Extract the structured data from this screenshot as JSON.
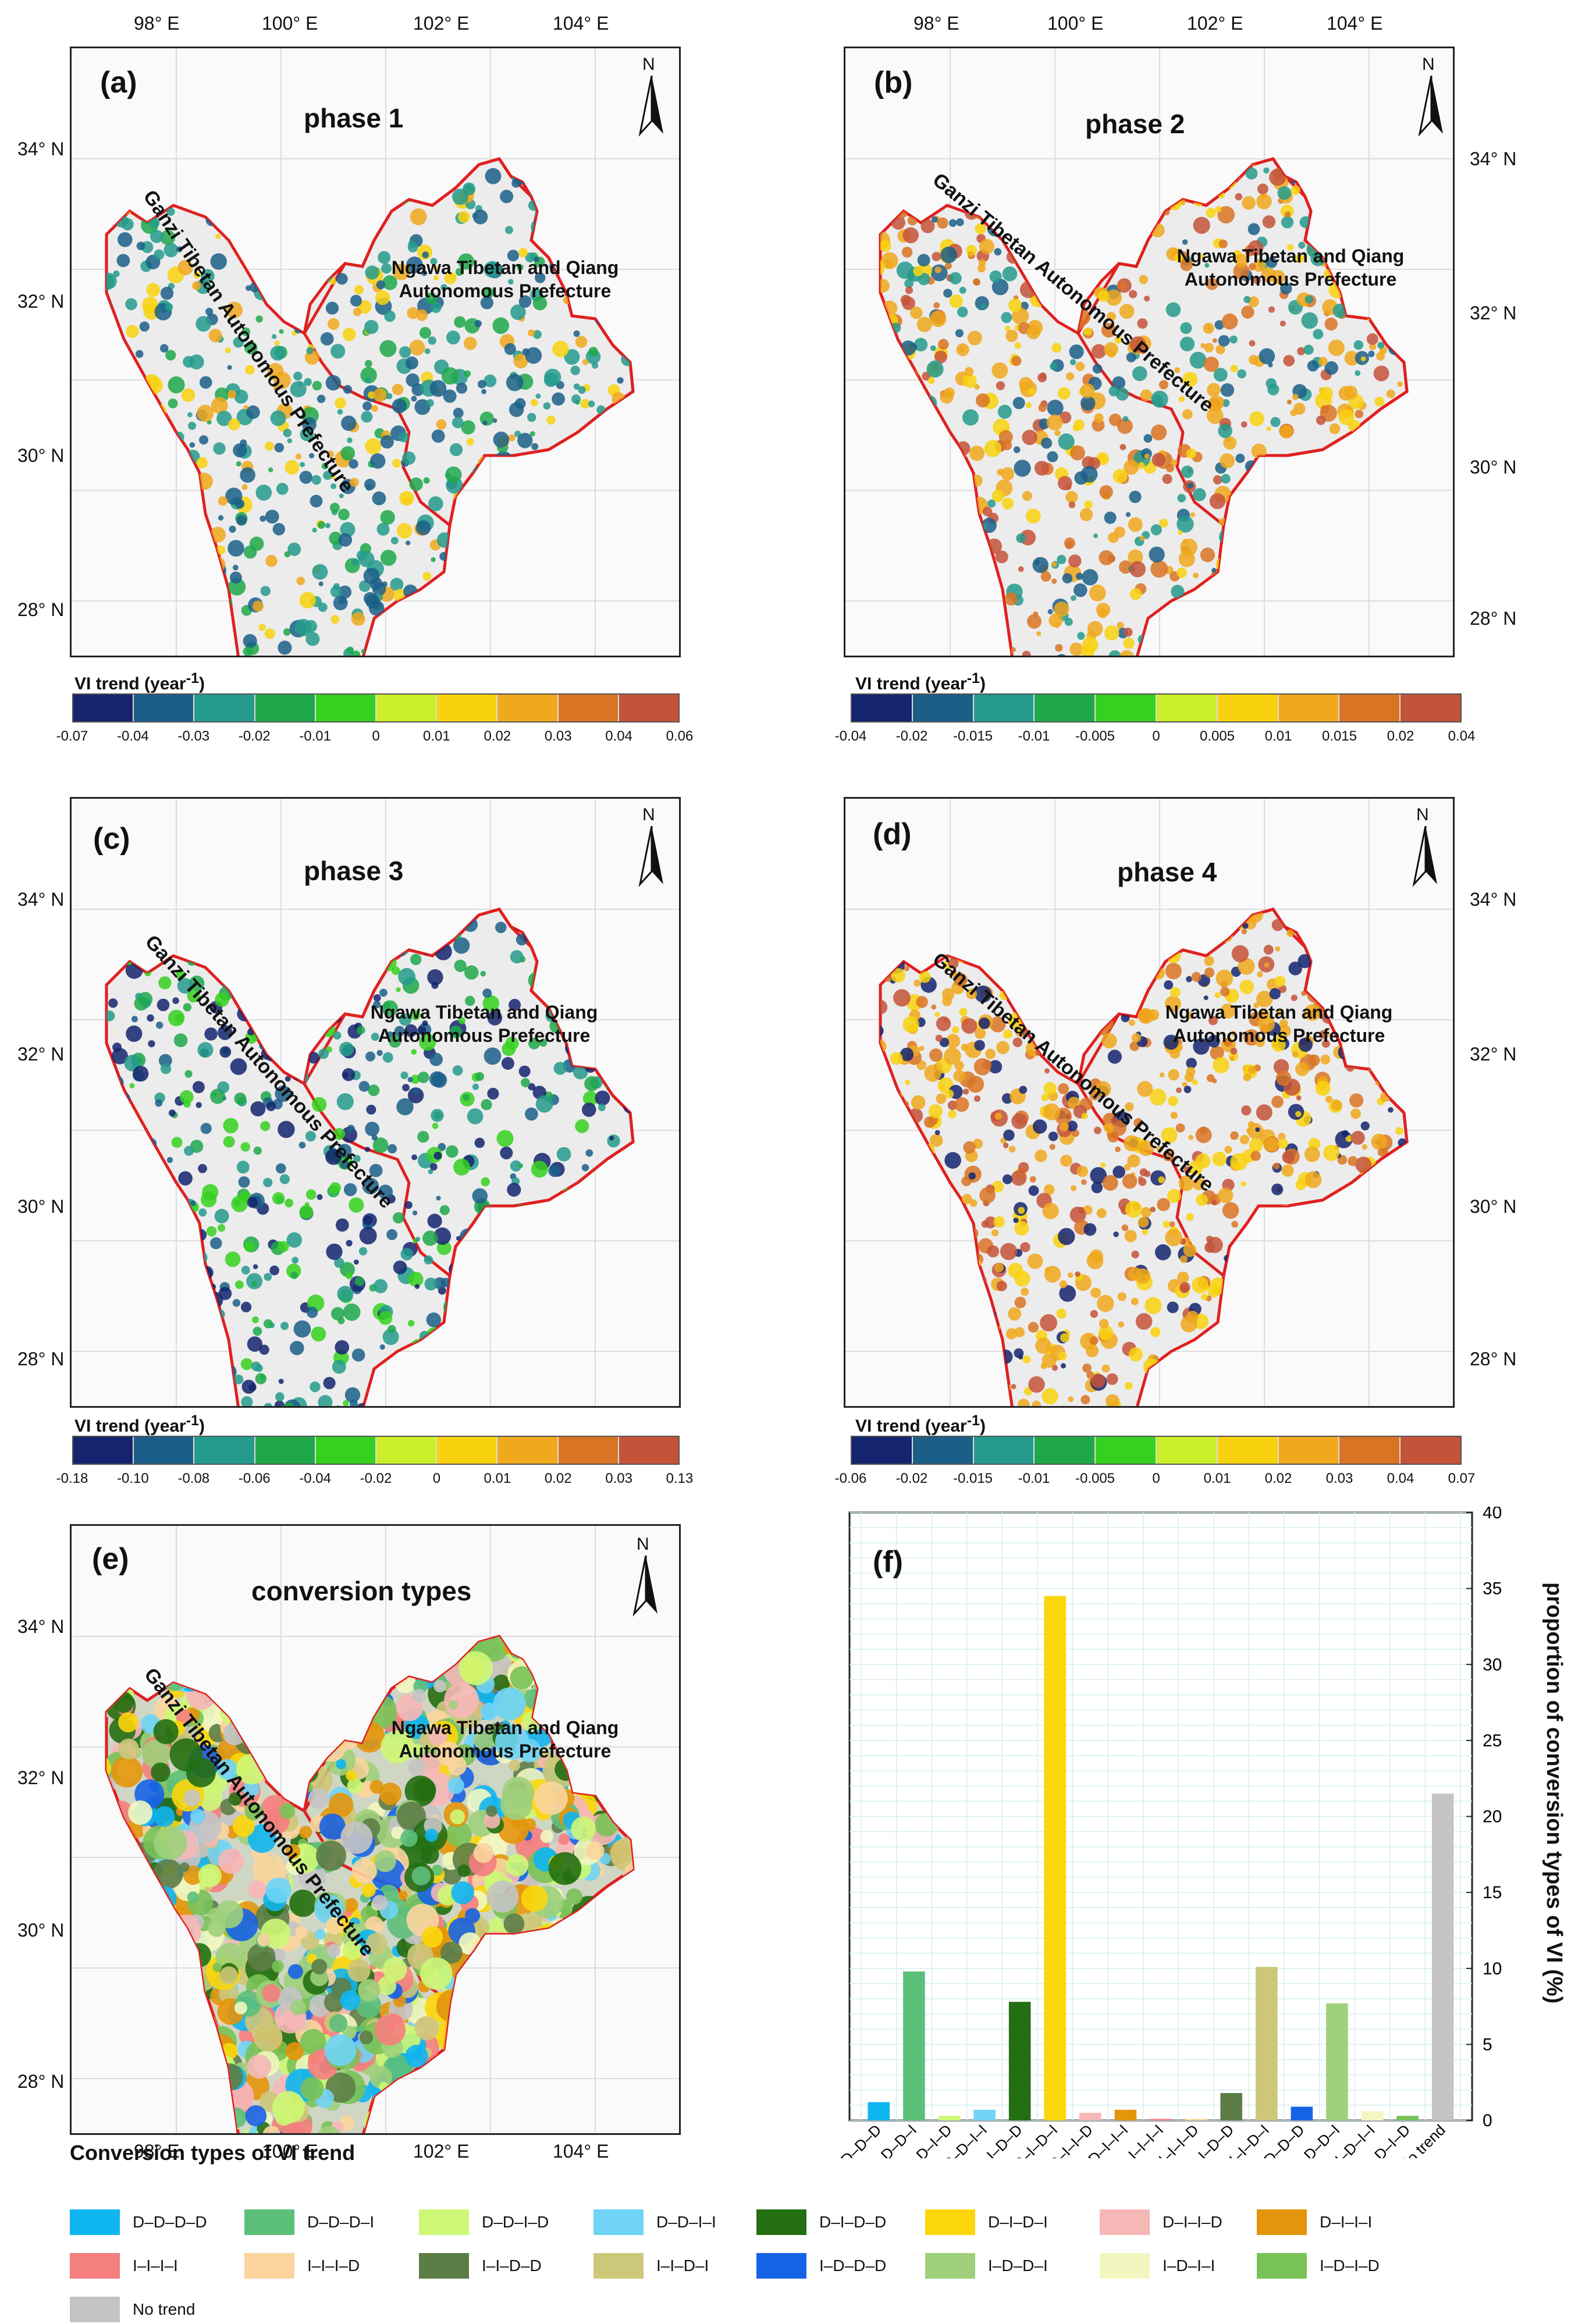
{
  "colors": {
    "boundary": "#e02020",
    "map_fill": "#ececec",
    "scale10": [
      "#14246e",
      "#1b5f88",
      "#249b8c",
      "#1fa84a",
      "#35d11f",
      "#cbef2a",
      "#f8d20e",
      "#f0a81c",
      "#d97424",
      "#c4533a"
    ]
  },
  "panels": [
    {
      "letter": "(a)",
      "title": "phase 1",
      "cb_title": "VI trend (year",
      "cb_ticks": [
        "-0.07",
        "-0.04",
        "-0.03",
        "-0.02",
        "-0.01",
        "0",
        "0.01",
        "0.02",
        "0.03",
        "0.04",
        "0.06"
      ]
    },
    {
      "letter": "(b)",
      "title": "phase 2",
      "cb_title": "VI trend (year",
      "cb_ticks": [
        "-0.04",
        "-0.02",
        "-0.015",
        "-0.01",
        "-0.005",
        "0",
        "0.005",
        "0.01",
        "0.015",
        "0.02",
        "0.04"
      ]
    },
    {
      "letter": "(c)",
      "title": "phase 3",
      "cb_title": "VI trend (year",
      "cb_ticks": [
        "-0.18",
        "-0.10",
        "-0.08",
        "-0.06",
        "-0.04",
        "-0.02",
        "0",
        "0.01",
        "0.02",
        "0.03",
        "0.13"
      ]
    },
    {
      "letter": "(d)",
      "title": "phase 4",
      "cb_title": "VI trend (year",
      "cb_ticks": [
        "-0.06",
        "-0.02",
        "-0.015",
        "-0.01",
        "-0.005",
        "0",
        "0.01",
        "0.02",
        "0.03",
        "0.04",
        "0.07"
      ]
    },
    {
      "letter": "(e)",
      "title": "conversion types"
    }
  ],
  "cb_exponent": "-1",
  "cb_close": ")",
  "north": "N",
  "lon_ticks": [
    "98° E",
    "100° E",
    "102° E",
    "104° E"
  ],
  "lat_ticks": [
    "34° N",
    "32° N",
    "30° N",
    "28° N"
  ],
  "regions": {
    "ganzi": "Ganzi Tibetan Autonomous Prefecture",
    "ngawa_1": "Ngawa Tibetan and Qiang",
    "ngawa_2": "Autonomous Prefecture"
  },
  "legend_title": "Conversion types of VI trend",
  "legend": [
    {
      "label": "D–D–D–D",
      "color": "#0fb5ef"
    },
    {
      "label": "D–D–D–I",
      "color": "#5cbf7a"
    },
    {
      "label": "D–D–I–D",
      "color": "#cdf776"
    },
    {
      "label": "D–D–I–I",
      "color": "#6fd4f5"
    },
    {
      "label": "D–I–D–D",
      "color": "#236f12"
    },
    {
      "label": "D–I–D–I",
      "color": "#fbd60b"
    },
    {
      "label": "D–I–I–D",
      "color": "#f6b7b7"
    },
    {
      "label": "D–I–I–I",
      "color": "#e3950b"
    },
    {
      "label": "I–I–I–I",
      "color": "#f57e7e"
    },
    {
      "label": "I–I–I–D",
      "color": "#fbd59d"
    },
    {
      "label": "I–I–D–D",
      "color": "#5d7d47"
    },
    {
      "label": "I–I–D–I",
      "color": "#cdc77a"
    },
    {
      "label": "I–D–D–D",
      "color": "#1763e6"
    },
    {
      "label": "I–D–D–I",
      "color": "#9fd07b"
    },
    {
      "label": "I–D–I–I",
      "color": "#f2f7c0"
    },
    {
      "label": "I–D–I–D",
      "color": "#79c257"
    },
    {
      "label": "No trend",
      "color": "#c4c4c4"
    }
  ],
  "chart_data": {
    "type": "bar",
    "panel": "(f)",
    "categories": [
      "D–D–D–D",
      "D–D–D–I",
      "D–D–I–D",
      "D–D–I–I",
      "D–I–D–D",
      "D–I–D–I",
      "D–I–I–D",
      "D–I–I–I",
      "I–I–I–I",
      "I–I–I–D",
      "I–I–D–D",
      "I–I–D–I",
      "I–D–D–D",
      "I–D–D–I",
      "I–D–I–I",
      "I–D–I–D",
      "No trend"
    ],
    "values": [
      1.2,
      9.8,
      0.3,
      0.7,
      7.8,
      34.5,
      0.5,
      0.7,
      0.1,
      0.1,
      1.8,
      10.1,
      0.9,
      7.7,
      0.6,
      0.3,
      21.5
    ],
    "colors": [
      "#0fb5ef",
      "#5cbf7a",
      "#cdf776",
      "#6fd4f5",
      "#236f12",
      "#fbd60b",
      "#f6b7b7",
      "#e3950b",
      "#f57e7e",
      "#fbd59d",
      "#5d7d47",
      "#cdc77a",
      "#1763e6",
      "#9fd07b",
      "#f2f7c0",
      "#79c257",
      "#c4c4c4"
    ],
    "ylabel": "proportion of conversion types of VI (%)",
    "ylim": [
      0,
      40
    ],
    "yticks": [
      "0",
      "5",
      "10",
      "15",
      "20",
      "25",
      "30",
      "35",
      "40"
    ],
    "grid": true
  }
}
